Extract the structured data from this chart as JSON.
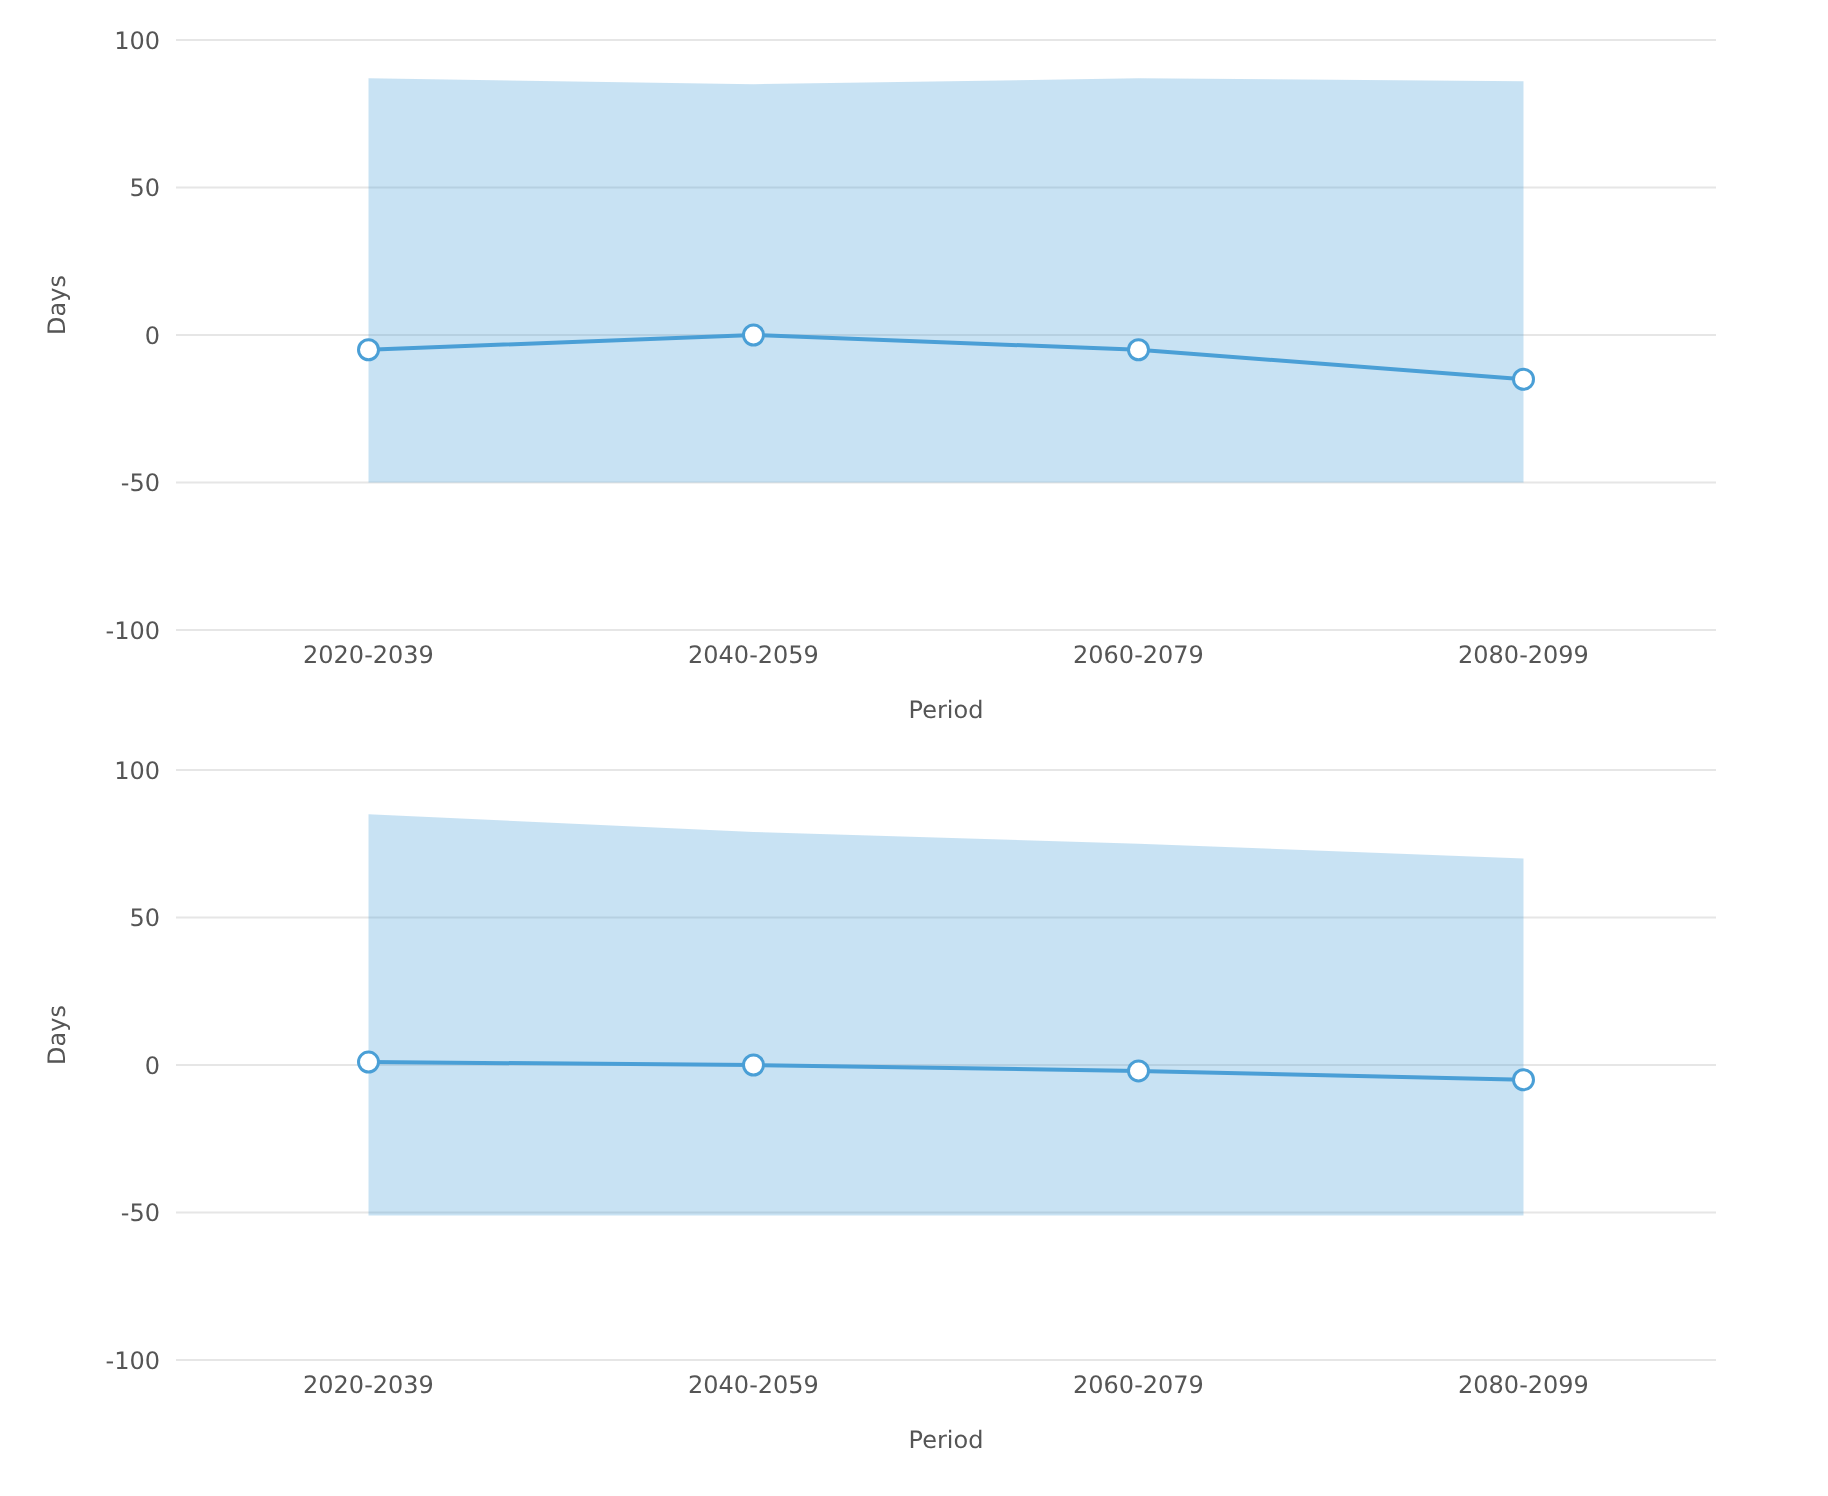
{
  "chart_data": [
    {
      "type": "line",
      "xlabel": "Period",
      "ylabel": "Days",
      "categories": [
        "2020-2039",
        "2040-2059",
        "2060-2079",
        "2080-2099"
      ],
      "ylim": [
        -100,
        100
      ],
      "yticks": [
        -100,
        -50,
        0,
        50,
        100
      ],
      "grid": "y",
      "marker": "circle",
      "legend": false,
      "series": [
        {
          "color": "#4a9fd6",
          "values": [
            -5,
            0,
            -5,
            -15
          ],
          "lower": [
            -50,
            -50,
            -50,
            -50
          ],
          "upper": [
            87,
            85,
            87,
            86
          ]
        }
      ]
    },
    {
      "type": "line",
      "xlabel": "Period",
      "ylabel": "Days",
      "categories": [
        "2020-2039",
        "2040-2059",
        "2060-2079",
        "2080-2099"
      ],
      "ylim": [
        -100,
        100
      ],
      "yticks": [
        -100,
        -50,
        0,
        50,
        100
      ],
      "grid": "y",
      "marker": "circle",
      "legend": false,
      "series": [
        {
          "color": "#4a9fd6",
          "values": [
            1,
            0,
            -2,
            -5
          ],
          "lower": [
            -51,
            -51,
            -51,
            -51
          ],
          "upper": [
            85,
            79,
            75,
            70
          ]
        }
      ]
    }
  ]
}
